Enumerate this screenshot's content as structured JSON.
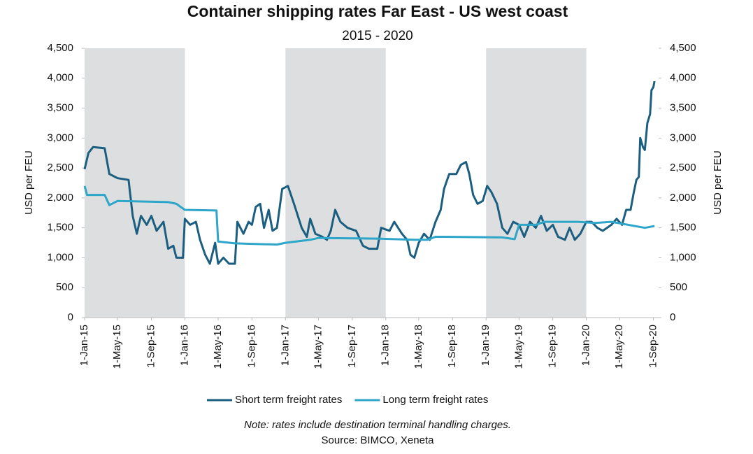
{
  "chart_data": {
    "type": "line",
    "title": "Container shipping rates Far East - US west coast",
    "subtitle": "2015 - 2020",
    "y_label": "USD per FEU",
    "y2_label": "USD per FEU",
    "note": "Note: rates include destination terminal handling charges.",
    "source": "Source: BIMCO, Xeneta",
    "xlim": [
      "2015-01-01",
      "2020-09-20"
    ],
    "xticks": [
      {
        "value": "2015-01-01",
        "label": "1-Jan-15"
      },
      {
        "value": "2015-05-01",
        "label": "1-May-15"
      },
      {
        "value": "2015-09-01",
        "label": "1-Sep-15"
      },
      {
        "value": "2016-01-01",
        "label": "1-Jan-16"
      },
      {
        "value": "2016-05-01",
        "label": "1-May-16"
      },
      {
        "value": "2016-09-01",
        "label": "1-Sep-16"
      },
      {
        "value": "2017-01-01",
        "label": "1-Jan-17"
      },
      {
        "value": "2017-05-01",
        "label": "1-May-17"
      },
      {
        "value": "2017-09-01",
        "label": "1-Sep-17"
      },
      {
        "value": "2018-01-01",
        "label": "1-Jan-18"
      },
      {
        "value": "2018-05-01",
        "label": "1-May-18"
      },
      {
        "value": "2018-09-01",
        "label": "1-Sep-18"
      },
      {
        "value": "2019-01-01",
        "label": "1-Jan-19"
      },
      {
        "value": "2019-05-01",
        "label": "1-May-19"
      },
      {
        "value": "2019-09-01",
        "label": "1-Sep-19"
      },
      {
        "value": "2020-01-01",
        "label": "1-Jan-20"
      },
      {
        "value": "2020-05-01",
        "label": "1-May-20"
      },
      {
        "value": "2020-09-01",
        "label": "1-Sep-20"
      }
    ],
    "ylim": [
      0,
      4500
    ],
    "yticks": [
      0,
      500,
      {
        "value": 1000,
        "label": "1,000"
      },
      {
        "value": 1500,
        "label": "1,500"
      },
      {
        "value": 2000,
        "label": "2,000"
      },
      {
        "value": 2500,
        "label": "2,500"
      },
      {
        "value": 3000,
        "label": "3,000"
      },
      {
        "value": 3500,
        "label": "3,500"
      },
      {
        "value": 4000,
        "label": "4,000"
      },
      {
        "value": 4500,
        "label": "4,500"
      }
    ],
    "y2lim": [
      0,
      4500
    ],
    "y2ticks": [
      0,
      500,
      {
        "value": 1000,
        "label": "1,000"
      },
      {
        "value": 1500,
        "label": "1,500"
      },
      {
        "value": 2000,
        "label": "2,000"
      },
      {
        "value": 2500,
        "label": "2,500"
      },
      {
        "value": 3000,
        "label": "3,000"
      },
      {
        "value": 3500,
        "label": "3,500"
      },
      {
        "value": 4000,
        "label": "4,000"
      },
      {
        "value": 4500,
        "label": "4,500"
      }
    ],
    "legend": "bottom",
    "series": [
      {
        "name": "Short term freight rates",
        "color": "#1b5e80",
        "x": [
          "2015-01-01",
          "2015-01-15",
          "2015-02-01",
          "2015-03-15",
          "2015-04-01",
          "2015-05-01",
          "2015-06-10",
          "2015-06-25",
          "2015-07-10",
          "2015-07-25",
          "2015-08-15",
          "2015-09-01",
          "2015-09-20",
          "2015-10-15",
          "2015-11-01",
          "2015-11-20",
          "2015-12-01",
          "2015-12-25",
          "2016-01-01",
          "2016-01-20",
          "2016-02-10",
          "2016-02-25",
          "2016-03-15",
          "2016-04-01",
          "2016-04-20",
          "2016-05-01",
          "2016-05-20",
          "2016-06-10",
          "2016-07-01",
          "2016-07-10",
          "2016-08-01",
          "2016-08-20",
          "2016-09-01",
          "2016-09-15",
          "2016-10-01",
          "2016-10-15",
          "2016-11-01",
          "2016-11-15",
          "2016-12-01",
          "2016-12-20",
          "2017-01-10",
          "2017-02-01",
          "2017-03-01",
          "2017-03-20",
          "2017-04-01",
          "2017-04-20",
          "2017-05-15",
          "2017-06-01",
          "2017-06-15",
          "2017-07-01",
          "2017-07-20",
          "2017-08-15",
          "2017-09-15",
          "2017-10-10",
          "2017-11-01",
          "2017-12-01",
          "2017-12-15",
          "2018-01-15",
          "2018-02-01",
          "2018-03-01",
          "2018-03-20",
          "2018-04-01",
          "2018-04-15",
          "2018-05-01",
          "2018-05-20",
          "2018-06-10",
          "2018-07-01",
          "2018-07-20",
          "2018-08-01",
          "2018-08-20",
          "2018-09-15",
          "2018-10-01",
          "2018-10-20",
          "2018-11-01",
          "2018-11-15",
          "2018-12-01",
          "2018-12-20",
          "2019-01-05",
          "2019-01-20",
          "2019-02-10",
          "2019-03-01",
          "2019-03-20",
          "2019-04-10",
          "2019-05-01",
          "2019-05-20",
          "2019-06-10",
          "2019-07-01",
          "2019-07-20",
          "2019-08-10",
          "2019-09-01",
          "2019-09-20",
          "2019-10-15",
          "2019-11-01",
          "2019-11-20",
          "2019-12-10",
          "2020-01-01",
          "2020-01-20",
          "2020-02-10",
          "2020-03-01",
          "2020-04-01",
          "2020-04-20",
          "2020-05-10",
          "2020-05-25",
          "2020-06-10",
          "2020-06-20",
          "2020-07-01",
          "2020-07-10",
          "2020-07-15",
          "2020-07-25",
          "2020-08-01",
          "2020-08-10",
          "2020-08-20",
          "2020-08-25",
          "2020-09-01",
          "2020-09-05"
        ],
        "values": [
          2480,
          2750,
          2850,
          2830,
          2400,
          2330,
          2300,
          1700,
          1400,
          1700,
          1550,
          1700,
          1450,
          1600,
          1150,
          1200,
          1000,
          1000,
          1650,
          1550,
          1600,
          1300,
          1050,
          900,
          1250,
          900,
          1000,
          900,
          900,
          1600,
          1400,
          1600,
          1550,
          1850,
          1900,
          1500,
          1800,
          1450,
          1500,
          2150,
          2200,
          1900,
          1500,
          1350,
          1650,
          1400,
          1350,
          1300,
          1450,
          1800,
          1600,
          1500,
          1450,
          1200,
          1150,
          1150,
          1500,
          1450,
          1600,
          1400,
          1300,
          1050,
          1000,
          1250,
          1400,
          1300,
          1600,
          1800,
          2150,
          2400,
          2400,
          2550,
          2600,
          2400,
          2050,
          1900,
          1950,
          2200,
          2100,
          1900,
          1500,
          1400,
          1600,
          1550,
          1350,
          1600,
          1500,
          1700,
          1450,
          1550,
          1350,
          1300,
          1500,
          1300,
          1400,
          1600,
          1600,
          1500,
          1450,
          1550,
          1650,
          1550,
          1800,
          1800,
          2050,
          2300,
          2350,
          3000,
          2850,
          2800,
          3250,
          3400,
          3800,
          3850,
          3950
        ]
      },
      {
        "name": "Long term freight rates",
        "color": "#2ea6c9",
        "x": [
          "2015-01-01",
          "2015-01-10",
          "2015-03-15",
          "2015-04-01",
          "2015-05-01",
          "2015-11-01",
          "2015-12-01",
          "2016-01-01",
          "2016-04-25",
          "2016-05-01",
          "2016-07-01",
          "2016-12-01",
          "2017-01-01",
          "2017-04-01",
          "2017-05-01",
          "2017-12-01",
          "2018-04-15",
          "2018-06-01",
          "2018-07-01",
          "2018-08-01",
          "2019-03-01",
          "2019-04-15",
          "2019-05-01",
          "2019-07-01",
          "2019-08-01",
          "2019-12-01",
          "2020-02-01",
          "2020-04-01",
          "2020-06-01",
          "2020-08-01",
          "2020-09-05"
        ],
        "values": [
          2200,
          2050,
          2050,
          1880,
          1950,
          1930,
          1900,
          1800,
          1790,
          1270,
          1240,
          1220,
          1250,
          1300,
          1330,
          1320,
          1300,
          1300,
          1350,
          1350,
          1340,
          1310,
          1550,
          1550,
          1600,
          1600,
          1580,
          1600,
          1550,
          1500,
          1530
        ]
      }
    ]
  }
}
